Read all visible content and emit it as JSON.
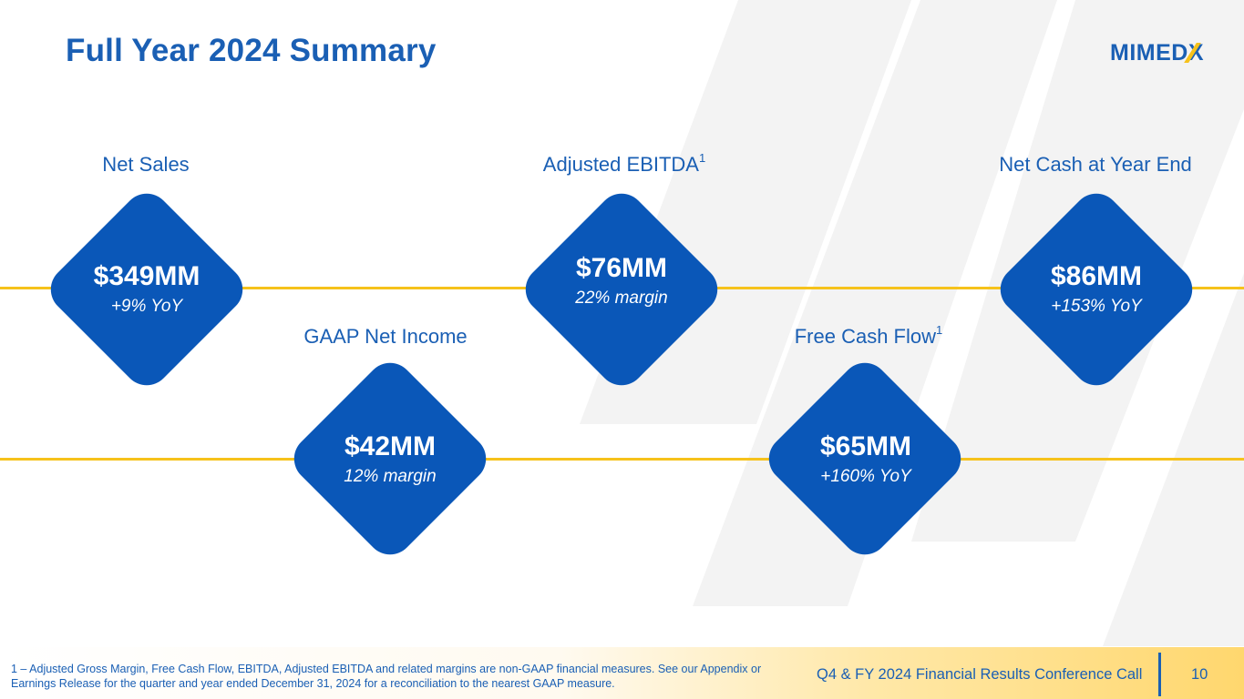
{
  "slide": {
    "title": "Full Year 2024 Summary",
    "logo_text_main": "MIMED",
    "logo_text_x": "X"
  },
  "metrics": [
    {
      "label": "Net Sales",
      "label_sup": "",
      "value": "$349MM",
      "sub": "+9% YoY"
    },
    {
      "label": "GAAP Net Income",
      "label_sup": "",
      "value": "$42MM",
      "sub": "12% margin"
    },
    {
      "label": "Adjusted EBITDA",
      "label_sup": "1",
      "value": "$76MM",
      "sub": "22% margin"
    },
    {
      "label": "Free Cash Flow",
      "label_sup": "1",
      "value": "$65MM",
      "sub": "+160% YoY"
    },
    {
      "label": "Net Cash at Year End",
      "label_sup": "",
      "value": "$86MM",
      "sub": "+153% YoY"
    }
  ],
  "footer": {
    "footnote": "1 – Adjusted Gross Margin, Free Cash Flow, EBITDA, Adjusted EBITDA and related margins are non-GAAP financial measures. See our Appendix or Earnings Release for the quarter and year ended December 31, 2024 for a reconciliation to the nearest GAAP measure.",
    "conference": "Q4 & FY 2024 Financial Results Conference Call",
    "page": "10"
  },
  "colors": {
    "brand_blue": "#0a57b8",
    "title_blue": "#1a5fb4",
    "accent_yellow": "#f6c21b"
  }
}
